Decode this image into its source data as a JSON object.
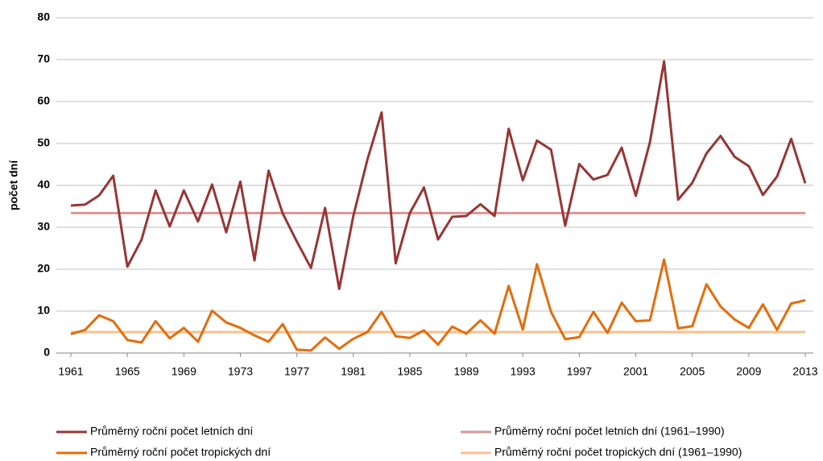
{
  "chart_data": {
    "type": "line",
    "y_label": "počet dní",
    "x": [
      1961,
      1962,
      1963,
      1964,
      1965,
      1966,
      1967,
      1968,
      1969,
      1970,
      1971,
      1972,
      1973,
      1974,
      1975,
      1976,
      1977,
      1978,
      1979,
      1980,
      1981,
      1982,
      1983,
      1984,
      1985,
      1986,
      1987,
      1988,
      1989,
      1990,
      1991,
      1992,
      1993,
      1994,
      1995,
      1996,
      1997,
      1998,
      1999,
      2000,
      2001,
      2002,
      2003,
      2004,
      2005,
      2006,
      2007,
      2008,
      2009,
      2010,
      2011,
      2012,
      2013
    ],
    "xlim": [
      1961,
      2013
    ],
    "xticks": [
      1961,
      1965,
      1969,
      1973,
      1977,
      1981,
      1985,
      1989,
      1993,
      1997,
      2001,
      2005,
      2009,
      2013
    ],
    "ylim": [
      0,
      80
    ],
    "yticks": [
      0,
      10,
      20,
      30,
      40,
      50,
      60,
      70,
      80
    ],
    "grid": true,
    "legend": "bottom",
    "series": [
      {
        "name": "Průměrný roční počet letních dní",
        "color": "#953735",
        "values": [
          35.2,
          35.4,
          37.6,
          42.3,
          20.6,
          27,
          38.8,
          30.2,
          38.8,
          31.4,
          40.2,
          28.8,
          40.9,
          22.1,
          43.5,
          33.3,
          26.6,
          20.3,
          34.6,
          15.3,
          32.7,
          46.2,
          57.4,
          21.4,
          33.4,
          39.5,
          27.1,
          32.5,
          32.7,
          35.5,
          32.7,
          53.5,
          41.2,
          50.7,
          48.5,
          30.4,
          45.1,
          41.4,
          42.5,
          49,
          37.5,
          50.3,
          69.6,
          36.6,
          40.6,
          47.6,
          51.8,
          46.8,
          44.6,
          37.7,
          42.1,
          51.1,
          40.5
        ]
      },
      {
        "name": "Průměrný roční počet letních dní (1961–1990)",
        "color": "#d99694",
        "values": [
          33.4,
          33.4,
          33.4,
          33.4,
          33.4,
          33.4,
          33.4,
          33.4,
          33.4,
          33.4,
          33.4,
          33.4,
          33.4,
          33.4,
          33.4,
          33.4,
          33.4,
          33.4,
          33.4,
          33.4,
          33.4,
          33.4,
          33.4,
          33.4,
          33.4,
          33.4,
          33.4,
          33.4,
          33.4,
          33.4,
          33.4,
          33.4,
          33.4,
          33.4,
          33.4,
          33.4,
          33.4,
          33.4,
          33.4,
          33.4,
          33.4,
          33.4,
          33.4,
          33.4,
          33.4,
          33.4,
          33.4,
          33.4,
          33.4,
          33.4,
          33.4,
          33.4,
          33.4
        ]
      },
      {
        "name": "Průměrný roční počet tropických dní",
        "color": "#e46c0a",
        "values": [
          4.5,
          5.5,
          9,
          7.6,
          3.1,
          2.5,
          7.6,
          3.5,
          6,
          2.7,
          10.1,
          7.3,
          6,
          4.2,
          2.7,
          6.9,
          0.8,
          0.6,
          3.7,
          1,
          3.4,
          5,
          9.8,
          4,
          3.6,
          5.4,
          2,
          6.3,
          4.6,
          7.8,
          4.6,
          16,
          5.6,
          21.2,
          9.8,
          3.3,
          3.8,
          9.8,
          4.8,
          12,
          7.6,
          7.8,
          22.3,
          5.9,
          6.4,
          16.4,
          11.1,
          8,
          6,
          11.6,
          5.5,
          11.8,
          12.6
        ]
      },
      {
        "name": "Průměrný roční počet tropických dní  (1961–1990)",
        "color": "#fac090",
        "values": [
          5,
          5,
          5,
          5,
          5,
          5,
          5,
          5,
          5,
          5,
          5,
          5,
          5,
          5,
          5,
          5,
          5,
          5,
          5,
          5,
          5,
          5,
          5,
          5,
          5,
          5,
          5,
          5,
          5,
          5,
          5,
          5,
          5,
          5,
          5,
          5,
          5,
          5,
          5,
          5,
          5,
          5,
          5,
          5,
          5,
          5,
          5,
          5,
          5,
          5,
          5,
          5,
          5
        ]
      }
    ]
  }
}
